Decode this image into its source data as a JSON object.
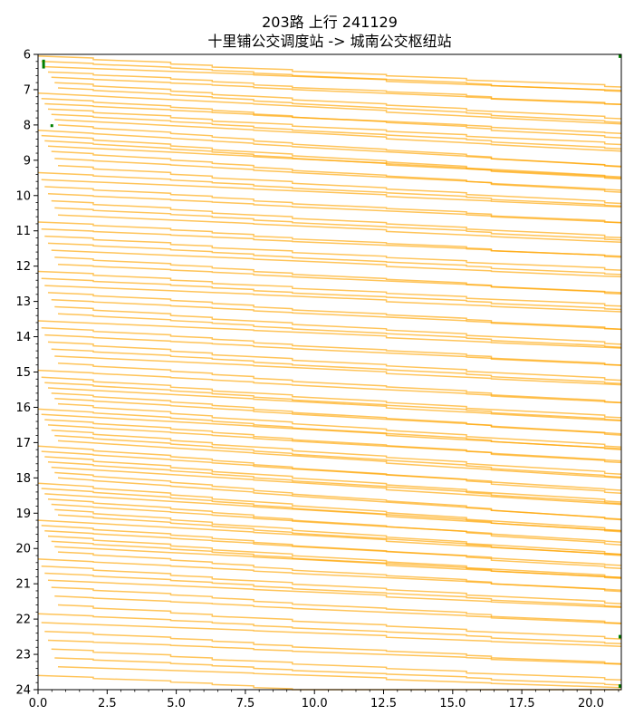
{
  "chart_data": {
    "type": "line",
    "title": "203路 上行 241129",
    "subtitle": "十里铺公交调度站 -> 城南公交枢纽站",
    "xlabel": "",
    "ylabel": "",
    "xlim": [
      0,
      21.1
    ],
    "ylim": [
      24,
      6
    ],
    "y_inverted": true,
    "x_ticks": [
      "0.0",
      "2.5",
      "5.0",
      "7.5",
      "10.0",
      "12.5",
      "15.0",
      "17.5",
      "20.0"
    ],
    "y_ticks": [
      "6",
      "7",
      "8",
      "9",
      "10",
      "11",
      "12",
      "13",
      "14",
      "15",
      "16",
      "17",
      "18",
      "19",
      "20",
      "21",
      "22",
      "23",
      "24"
    ],
    "grid": false,
    "legend": "none",
    "colors": {
      "trip": "#ffa500",
      "marker": "#008000"
    },
    "dwell_points": [
      2.0,
      4.8,
      6.3,
      7.8,
      9.2,
      12.6,
      15.5,
      16.4,
      20.5
    ],
    "start_times": [
      6.05,
      6.2,
      6.35,
      6.5,
      6.65,
      6.8,
      6.95,
      7.1,
      7.25,
      7.4,
      7.55,
      7.7,
      7.85,
      8.0,
      8.15,
      8.3,
      8.45,
      8.6,
      8.75,
      8.95,
      9.15,
      9.35,
      9.55,
      9.75,
      9.95,
      10.15,
      10.35,
      10.55,
      10.75,
      10.95,
      11.15,
      11.35,
      11.55,
      11.75,
      11.95,
      12.15,
      12.35,
      12.55,
      12.75,
      12.95,
      13.15,
      13.35,
      13.55,
      13.75,
      13.95,
      14.15,
      14.35,
      14.55,
      14.75,
      14.95,
      15.15,
      15.3,
      15.45,
      15.6,
      15.75,
      15.9,
      16.05,
      16.2,
      16.35,
      16.5,
      16.65,
      16.8,
      16.95,
      17.1,
      17.25,
      17.4,
      17.55,
      17.7,
      17.85,
      18.0,
      18.15,
      18.3,
      18.45,
      18.6,
      18.75,
      18.9,
      19.05,
      19.2,
      19.35,
      19.5,
      19.65,
      19.8,
      19.95,
      20.1,
      20.3,
      20.5,
      20.7,
      20.9,
      21.1,
      21.35,
      21.6,
      21.85,
      22.1,
      22.35,
      22.6,
      22.85,
      23.1,
      23.35,
      23.6
    ],
    "trip_duration_hours": [
      0.55,
      0.62,
      0.6,
      0.58,
      0.65,
      0.7,
      0.75,
      0.8,
      0.78,
      0.72,
      0.68,
      0.75,
      0.82,
      0.85,
      0.9,
      0.88,
      0.85,
      0.8,
      0.82,
      0.78,
      0.75,
      0.72,
      0.7,
      0.68,
      0.7,
      0.72,
      0.68,
      0.7,
      0.66,
      0.65,
      0.64,
      0.66,
      0.68,
      0.7,
      0.68,
      0.66,
      0.65,
      0.67,
      0.7,
      0.72,
      0.74,
      0.72,
      0.7,
      0.72,
      0.74,
      0.76,
      0.75,
      0.74,
      0.78,
      0.8,
      0.82,
      0.84,
      0.86,
      0.85,
      0.88,
      0.9,
      0.92,
      0.9,
      0.88,
      0.9,
      0.92,
      0.95,
      0.98,
      1.0,
      0.98,
      0.96,
      0.95,
      0.98,
      1.0,
      1.05,
      1.02,
      1.0,
      0.98,
      0.96,
      0.95,
      0.94,
      0.92,
      0.9,
      0.88,
      0.86,
      0.85,
      0.82,
      0.8,
      0.78,
      0.76,
      0.74,
      0.72,
      0.7,
      0.68,
      0.66,
      0.64,
      0.62,
      0.6,
      0.58,
      0.56,
      0.55,
      0.54,
      0.52,
      0.5
    ],
    "marker_segments": [
      {
        "x": 0.2,
        "y": [
          6.15,
          6.4
        ]
      },
      {
        "x": 0.5,
        "y": [
          7.98,
          8.06
        ]
      },
      {
        "x": 21.05,
        "y": [
          6.0,
          6.1
        ]
      },
      {
        "x": 21.05,
        "y": [
          22.45,
          22.55
        ]
      },
      {
        "x": 21.05,
        "y": [
          23.85,
          23.95
        ]
      }
    ]
  }
}
